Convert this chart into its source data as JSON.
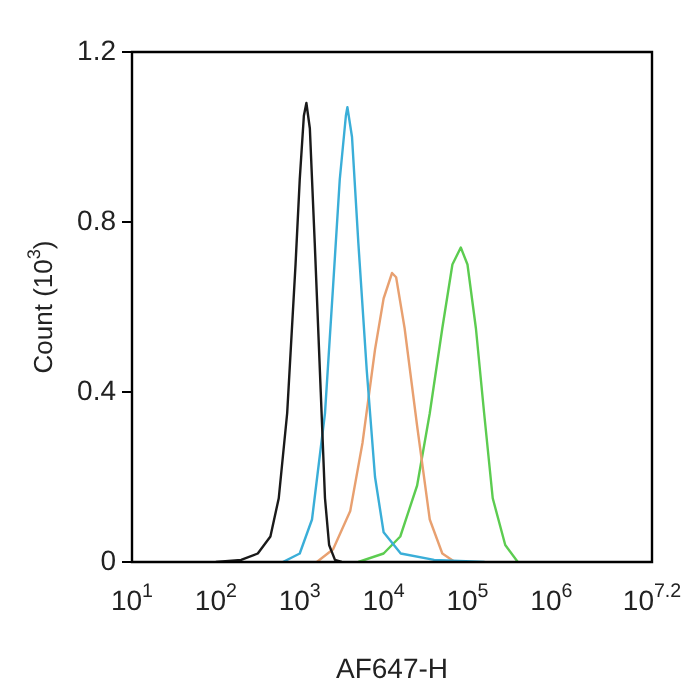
{
  "chart_data": {
    "type": "line",
    "xlabel": "AF647-H",
    "ylabel": "Count (10$^{3}$)",
    "log": "x",
    "grid": false,
    "legend": false,
    "marker": "none",
    "line_style": "solid",
    "xlim": [
      10,
      15848932
    ],
    "xticks": [
      {
        "value": 10,
        "label": "10$^{1}$"
      },
      {
        "value": 100,
        "label": "10$^{2}$"
      },
      {
        "value": 1000,
        "label": "10$^{3}$"
      },
      {
        "value": 10000,
        "label": "10$^{4}$"
      },
      {
        "value": 100000,
        "label": "10$^{5}$"
      },
      {
        "value": 1000000,
        "label": "10$^{6}$"
      },
      {
        "value": 15848932,
        "label": "10$^{7.2}$"
      }
    ],
    "ylim": [
      0,
      1.2
    ],
    "yticks": [
      0,
      0.4,
      0.8,
      1.2
    ],
    "series": [
      {
        "color": "#1a1a1a",
        "x": [
          100,
          200,
          316,
          447,
          562,
          708,
          891,
          1000,
          1120,
          1200,
          1320,
          1510,
          1780,
          2000,
          2240,
          2630,
          3160
        ],
        "values": [
          0,
          0.005,
          0.02,
          0.06,
          0.15,
          0.35,
          0.7,
          0.9,
          1.05,
          1.08,
          1.02,
          0.75,
          0.4,
          0.15,
          0.04,
          0.005,
          0
        ]
      },
      {
        "color": "#3aaed8",
        "x": [
          630,
          1000,
          1400,
          2000,
          2500,
          3000,
          3550,
          3700,
          4200,
          5000,
          6300,
          7900,
          10000,
          16000,
          40000,
          160000
        ],
        "values": [
          0,
          0.02,
          0.1,
          0.35,
          0.65,
          0.9,
          1.05,
          1.07,
          1.0,
          0.75,
          0.45,
          0.2,
          0.07,
          0.02,
          0.005,
          0
        ]
      },
      {
        "color": "#e8a070",
        "x": [
          1600,
          2500,
          4000,
          5600,
          7900,
          10000,
          12600,
          14100,
          17800,
          25100,
          35500,
          50100,
          70800
        ],
        "values": [
          0,
          0.03,
          0.12,
          0.28,
          0.5,
          0.62,
          0.68,
          0.67,
          0.55,
          0.32,
          0.1,
          0.02,
          0
        ]
      },
      {
        "color": "#5ccc50",
        "x": [
          5000,
          10000,
          15800,
          25100,
          35500,
          50100,
          66100,
          83200,
          100000,
          126000,
          158000,
          200000,
          282000,
          398000
        ],
        "values": [
          0,
          0.02,
          0.06,
          0.18,
          0.35,
          0.55,
          0.7,
          0.74,
          0.7,
          0.55,
          0.35,
          0.15,
          0.04,
          0
        ]
      }
    ]
  }
}
